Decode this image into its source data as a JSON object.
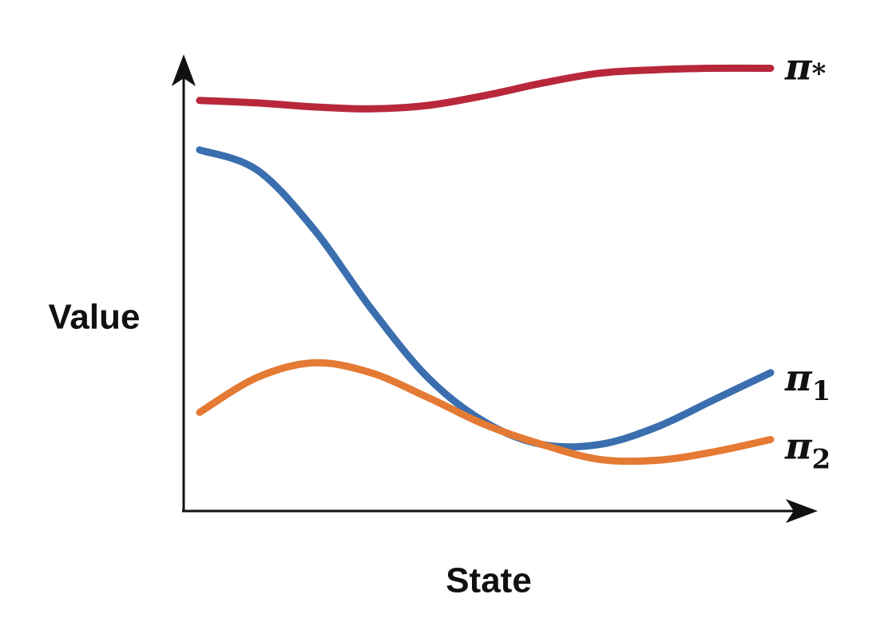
{
  "chart_data": {
    "type": "line",
    "xlabel": "State",
    "ylabel": "Value",
    "xlim": [
      0,
      10
    ],
    "ylim": [
      0,
      10
    ],
    "grid": false,
    "legend": "inline labels at right end of each line",
    "series": [
      {
        "name": "π*",
        "label_main": "π",
        "label_sub": "*",
        "color": "#b8283a",
        "x": [
          0,
          1,
          2,
          3,
          4,
          5,
          6,
          7,
          8,
          9,
          10
        ],
        "y": [
          9.1,
          9.05,
          8.97,
          8.93,
          9.0,
          9.2,
          9.45,
          9.65,
          9.72,
          9.75,
          9.75
        ]
      },
      {
        "name": "π1",
        "label_main": "π",
        "label_sub": "1",
        "color": "#3a6eae",
        "x": [
          0,
          1,
          2,
          3,
          4,
          5,
          6,
          7,
          8,
          9,
          10
        ],
        "y": [
          8.1,
          7.7,
          6.5,
          4.9,
          3.5,
          2.6,
          2.15,
          2.15,
          2.5,
          3.05,
          3.6
        ]
      },
      {
        "name": "π2",
        "label_main": "π",
        "label_sub": "2",
        "color": "#e47a33",
        "x": [
          0,
          1,
          2,
          3,
          4,
          5,
          6,
          7,
          8,
          9,
          10
        ],
        "y": [
          2.8,
          3.5,
          3.8,
          3.6,
          3.1,
          2.55,
          2.15,
          1.85,
          1.83,
          2.0,
          2.25
        ]
      }
    ]
  }
}
